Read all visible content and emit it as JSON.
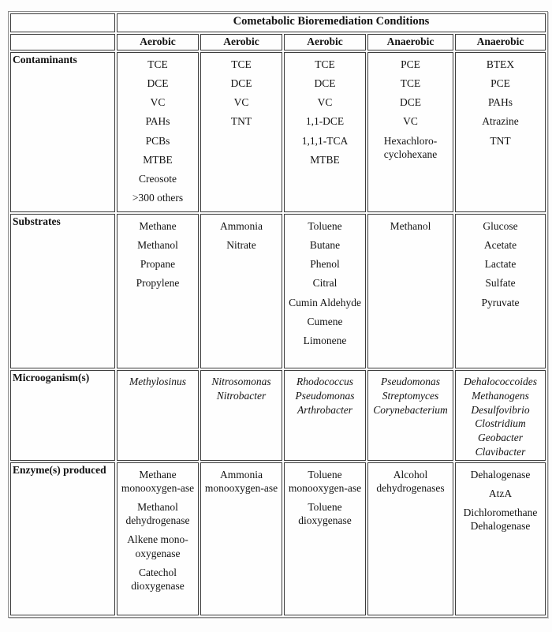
{
  "table": {
    "title": "Cometabolic Bioremediation Conditions",
    "column_headers": [
      "Aerobic",
      "Aerobic",
      "Aerobic",
      "Anaerobic",
      "Anaerobic"
    ],
    "rows": [
      {
        "label": "Contaminants",
        "mode": "paragraphs",
        "cells": [
          {
            "items": [
              "TCE",
              "DCE",
              "VC",
              "PAHs",
              "PCBs",
              "MTBE",
              "Creosote",
              ">300 others"
            ]
          },
          {
            "items": [
              "TCE",
              "DCE",
              "VC",
              "TNT"
            ]
          },
          {
            "items": [
              "TCE",
              "DCE",
              "VC",
              "1,1-DCE",
              "1,1,1-TCA",
              "MTBE"
            ]
          },
          {
            "items": [
              "PCE",
              "TCE",
              "DCE",
              "VC",
              "Hexachloro-cyclohexane"
            ]
          },
          {
            "items": [
              "BTEX",
              "PCE",
              "PAHs",
              "Atrazine",
              "TNT"
            ]
          }
        ]
      },
      {
        "label": "Substrates",
        "mode": "paragraphs",
        "cells": [
          {
            "items": [
              "Methane",
              "Methanol",
              "Propane",
              "Propylene"
            ]
          },
          {
            "items": [
              "Ammonia",
              "Nitrate"
            ]
          },
          {
            "items": [
              "Toluene",
              "Butane",
              "Phenol",
              "Citral",
              "Cumin Aldehyde",
              "Cumene",
              "Limonene"
            ]
          },
          {
            "items": [
              "Methanol"
            ]
          },
          {
            "items": [
              "Glucose",
              "Acetate",
              "Lactate",
              "Sulfate",
              "Pyruvate"
            ]
          }
        ]
      },
      {
        "label": "Microoganism(s)",
        "mode": "lines",
        "cells": [
          {
            "items": [
              "Methylosinus"
            ]
          },
          {
            "items": [
              "Nitrosomonas",
              "Nitrobacter"
            ]
          },
          {
            "items": [
              "Rhodococcus",
              "Pseudomonas",
              "Arthrobacter"
            ]
          },
          {
            "items": [
              "Pseudomonas",
              "Streptomyces",
              "Corynebacterium"
            ]
          },
          {
            "items": [
              "Dehalococcoides",
              "Methanogens",
              "Desulfovibrio",
              "Clostridium",
              "Geobacter",
              "Clavibacter"
            ]
          }
        ]
      },
      {
        "label": "Enzyme(s) produced",
        "mode": "paragraphs",
        "cells": [
          {
            "items": [
              "Methane monooxygen-ase",
              "Methanol dehydrogenase",
              "Alkene mono-oxygenase",
              "Catechol dioxygenase"
            ]
          },
          {
            "items": [
              "Ammonia monooxygen-ase"
            ]
          },
          {
            "items": [
              "Toluene monooxygen-ase",
              "Toluene dioxygenase"
            ]
          },
          {
            "items": [
              "Alcohol dehydrogenases"
            ]
          },
          {
            "items": [
              "Dehalogenase",
              "AtzA",
              "Dichloromethane Dehalogenase"
            ]
          }
        ]
      }
    ]
  }
}
